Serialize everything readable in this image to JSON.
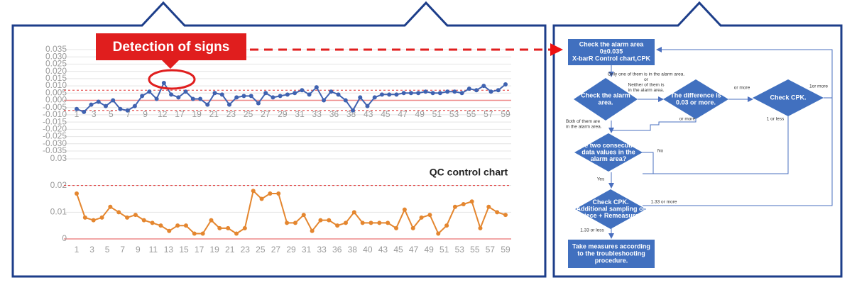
{
  "callout": "Detection of signs",
  "chart_label": "QC control chart",
  "xbar_chart": {
    "type": "line",
    "color": "#3f62b0",
    "ylim": [
      -0.035,
      0.035
    ],
    "yticks": [
      0.035,
      {
        "value": 0.03,
        "label": "0.030"
      },
      0.025,
      {
        "value": 0.02,
        "label": "0.020"
      },
      0.015,
      {
        "value": 0.01,
        "label": "0.010"
      },
      0.005,
      {
        "value": 0,
        "label": "0.000"
      },
      -0.005,
      {
        "value": -0.01,
        "label": "-0.010"
      },
      -0.015,
      {
        "value": -0.02,
        "label": "-0.020"
      },
      -0.025,
      {
        "value": -0.03,
        "label": "-0.030"
      },
      -0.035
    ],
    "limits": [
      0.007,
      -0.007
    ],
    "xtick_labels": [
      "1",
      "3",
      "5",
      "7",
      "9",
      "12",
      "17",
      "19",
      "21",
      "23",
      "25",
      "27",
      "29",
      "31",
      "33",
      "36",
      "38",
      "43",
      "45",
      "47",
      "49",
      "51",
      "53",
      "55",
      "57",
      "59"
    ],
    "values": [
      -0.006,
      -0.008,
      -0.003,
      -0.001,
      -0.004,
      0.0,
      -0.006,
      -0.007,
      -0.004,
      0.003,
      0.006,
      0.001,
      0.012,
      0.004,
      0.002,
      0.006,
      0.001,
      0.001,
      -0.003,
      0.005,
      0.004,
      -0.003,
      0.002,
      0.003,
      0.003,
      -0.002,
      0.005,
      0.002,
      0.003,
      0.004,
      0.005,
      0.007,
      0.004,
      0.009,
      0.0,
      0.006,
      0.004,
      0.0,
      -0.007,
      0.002,
      -0.004,
      0.002,
      0.004,
      0.004,
      0.004,
      0.005,
      0.005,
      0.005,
      0.006,
      0.005,
      0.005,
      0.006,
      0.006,
      0.005,
      0.008,
      0.007,
      0.01,
      0.006,
      0.007,
      0.011
    ]
  },
  "range_chart": {
    "type": "line",
    "color": "#e4862f",
    "ylim": [
      0,
      0.03
    ],
    "yticks": [
      0.03,
      0.02,
      0.01,
      0
    ],
    "limits": [
      0.02
    ],
    "xtick_labels": [
      "1",
      "3",
      "5",
      "7",
      "9",
      "11",
      "13",
      "15",
      "17",
      "19",
      "21",
      "23",
      "25",
      "27",
      "29",
      "31",
      "33",
      "36",
      "38",
      "40",
      "43",
      "45",
      "47",
      "49",
      "51",
      "53",
      "55",
      "57",
      "59"
    ],
    "values": [
      0.017,
      0.008,
      0.007,
      0.008,
      0.012,
      0.01,
      0.008,
      0.009,
      0.007,
      0.006,
      0.005,
      0.003,
      0.005,
      0.005,
      0.002,
      0.002,
      0.007,
      0.004,
      0.004,
      0.002,
      0.004,
      0.018,
      0.015,
      0.017,
      0.017,
      0.006,
      0.006,
      0.009,
      0.003,
      0.007,
      0.007,
      0.005,
      0.006,
      0.01,
      0.006,
      0.006,
      0.006,
      0.006,
      0.004,
      0.011,
      0.004,
      0.008,
      0.009,
      0.002,
      0.005,
      0.012,
      0.013,
      0.014,
      0.004,
      0.012,
      0.01,
      0.009
    ]
  },
  "flow": {
    "nodes": [
      {
        "lines": [
          "Check the alarm area",
          "0±0.035",
          "X-barR Control chart,CPK"
        ]
      },
      {
        "lines": [
          "Check the alarm",
          "area."
        ]
      },
      {
        "lines": [
          "The difference is",
          "0.03 or more."
        ]
      },
      {
        "lines": [
          "Check CPK."
        ]
      },
      {
        "lines": [
          "Are two consecutive",
          "data values in the",
          "alarm area?"
        ]
      },
      {
        "lines": [
          "Check CPK.",
          "Additional sampling of",
          "one piece + Remeasurement"
        ]
      },
      {
        "lines": [
          "Take measures according",
          "to the troubleshooting",
          "procedure."
        ]
      }
    ],
    "edge_labels": [
      {
        "lines": [
          "Only one of them is in the alarm area.",
          "or",
          "Neither of them is",
          "in the alarm area."
        ]
      },
      {
        "lines": [
          "or more"
        ]
      },
      {
        "lines": [
          "1or more"
        ]
      },
      {
        "lines": [
          "or more"
        ]
      },
      {
        "lines": [
          "1 or less"
        ]
      },
      {
        "lines": [
          "Both of them are",
          "in the alarm area."
        ]
      },
      {
        "lines": [
          "No"
        ]
      },
      {
        "lines": [
          "Yes"
        ]
      },
      {
        "lines": [
          "1.33 or more"
        ]
      },
      {
        "lines": [
          "1.33 or less"
        ]
      }
    ]
  }
}
